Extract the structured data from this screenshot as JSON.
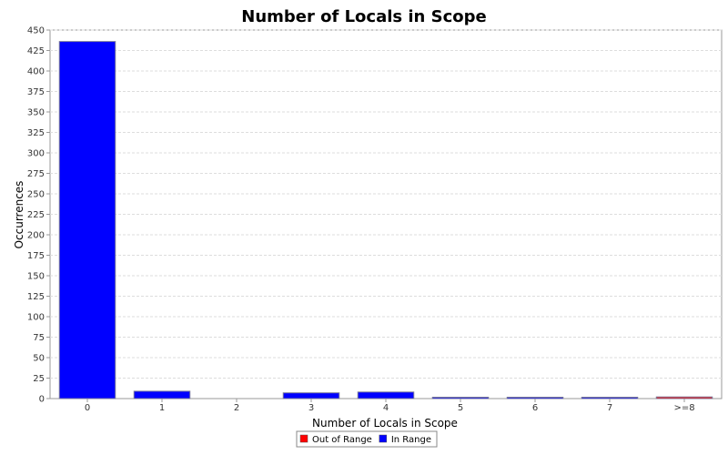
{
  "chart_data": {
    "type": "bar",
    "title": "Number of Locals in Scope",
    "xlabel": "Number of Locals in Scope",
    "ylabel": "Occurrences",
    "categories": [
      "0",
      "1",
      "2",
      "3",
      "4",
      "5",
      "6",
      "7",
      ">=8"
    ],
    "values": [
      436,
      9,
      0,
      7,
      8,
      1,
      1,
      1,
      2
    ],
    "series_of_category": [
      "In Range",
      "In Range",
      "In Range",
      "In Range",
      "In Range",
      "In Range",
      "In Range",
      "In Range",
      "Out of Range"
    ],
    "ylim": [
      0,
      450
    ],
    "yticks": [
      0,
      25,
      50,
      75,
      100,
      125,
      150,
      175,
      200,
      225,
      250,
      275,
      300,
      325,
      350,
      375,
      400,
      425,
      450
    ],
    "grid": true,
    "legend": {
      "placement": "bottom",
      "entries": [
        {
          "name": "Out of Range",
          "color": "#ff0000"
        },
        {
          "name": "In Range",
          "color": "#0000ff"
        }
      ]
    }
  }
}
